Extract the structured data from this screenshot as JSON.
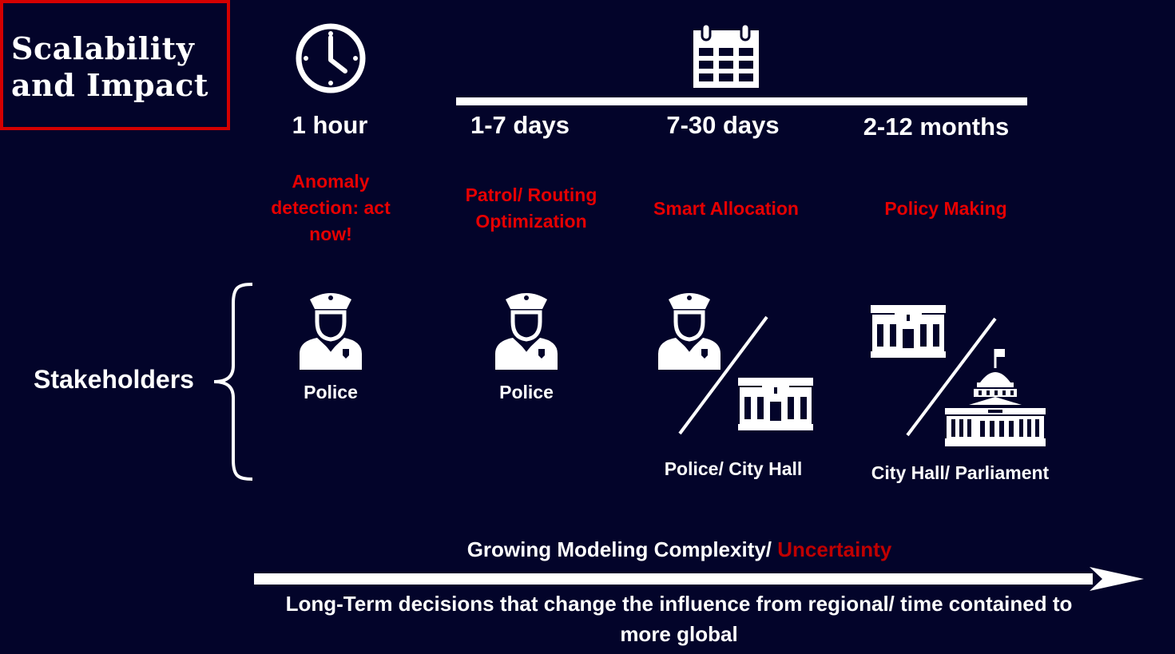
{
  "title": "Scalability and Impact",
  "columns": [
    {
      "time": "1 hour",
      "task": "Anomaly detection: act now!",
      "stakeholder": "Police"
    },
    {
      "time": "1-7 days",
      "task": "Patrol/ Routing Optimization",
      "stakeholder": "Police"
    },
    {
      "time": "7-30 days",
      "task": "Smart Allocation",
      "stakeholder": "Police/ City Hall"
    },
    {
      "time": "2-12 months",
      "task": "Policy Making",
      "stakeholder": "City Hall/ Parliament"
    }
  ],
  "stakeholders_label": "Stakeholders",
  "complexity": {
    "prefix": "Growing Modeling Complexity/ ",
    "highlight": "Uncertainty"
  },
  "bottom_text": "Long-Term decisions that change the influence from regional/ time contained to more global",
  "icons": [
    "clock-icon",
    "calendar-icon",
    "police-officer-icon",
    "city-hall-icon",
    "parliament-icon"
  ],
  "colors": {
    "background": "#03042a",
    "accent": "#e60000",
    "text": "#ffffff"
  }
}
